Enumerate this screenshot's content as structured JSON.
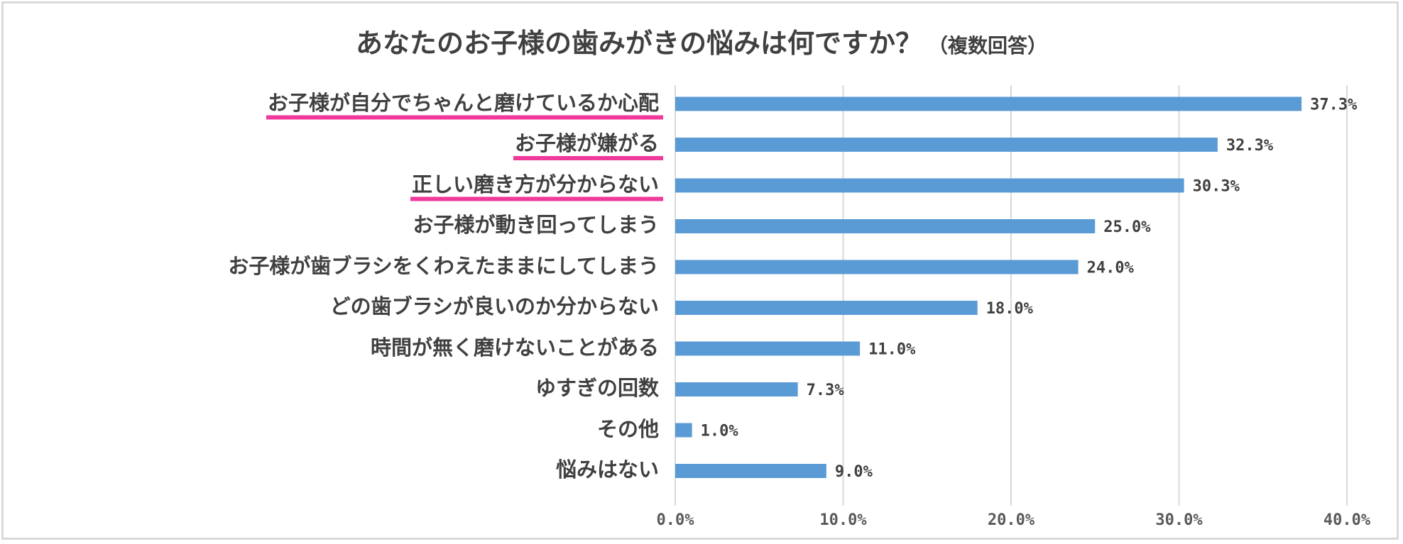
{
  "chart_data": {
    "type": "bar",
    "orientation": "horizontal",
    "title": "あなたのお子様の歯みがきの悩みは何ですか？",
    "subtitle": "（複数回答）",
    "categories": [
      "お子様が自分でちゃんと磨けているか心配",
      "お子様が嫌がる",
      "正しい磨き方が分からない",
      "お子様が動き回ってしまう",
      "お子様が歯ブラシをくわえたままにしてしまう",
      "どの歯ブラシが良いのか分からない",
      "時間が無く磨けないことがある",
      "ゆすぎの回数",
      "その他",
      "悩みはない"
    ],
    "values": [
      37.3,
      32.3,
      30.3,
      25.0,
      24.0,
      18.0,
      11.0,
      7.3,
      1.0,
      9.0
    ],
    "data_labels": [
      "37.3%",
      "32.3%",
      "30.3%",
      "25.0%",
      "24.0%",
      "18.0%",
      "11.0%",
      "7.3%",
      "1.0%",
      "9.0%"
    ],
    "underlined_categories": [
      0,
      1,
      2
    ],
    "xlim": [
      0,
      40
    ],
    "x_ticks": [
      "0.0%",
      "10.0%",
      "20.0%",
      "30.0%",
      "40.0%"
    ],
    "grid": true,
    "legend": "none",
    "colors": {
      "bar": "#5b9bd5",
      "underline": "#f0399a",
      "grid": "#d9d9d9",
      "text": "#404040"
    }
  }
}
